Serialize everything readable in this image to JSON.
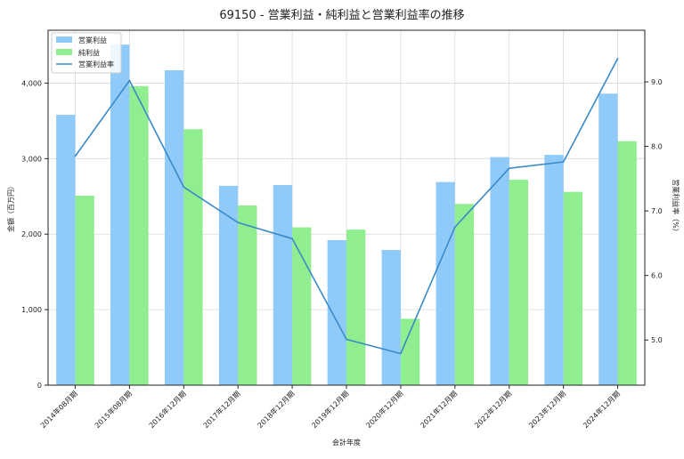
{
  "chart_data": {
    "type": "bar",
    "title": "69150 - 営業利益・純利益と営業利益率の推移",
    "xlabel": "会計年度",
    "ylabel": "金額（百万円）",
    "y2label": "営業利益率（%）",
    "categories": [
      "2014年08月期",
      "2015年08月期",
      "2016年12月期",
      "2017年12月期",
      "2018年12月期",
      "2019年12月期",
      "2020年12月期",
      "2021年12月期",
      "2022年12月期",
      "2023年12月期",
      "2024年12月期"
    ],
    "ylim": [
      0,
      4700
    ],
    "yticks": [
      0,
      1000,
      2000,
      3000,
      4000
    ],
    "ytick_labels": [
      "0",
      "1,000",
      "2,000",
      "3,000",
      "4,000"
    ],
    "y2lim": [
      4.3,
      9.8
    ],
    "y2ticks": [
      5.0,
      6.0,
      7.0,
      8.0,
      9.0
    ],
    "y2tick_labels": [
      "5.0",
      "6.0",
      "7.0",
      "8.0",
      "9.0"
    ],
    "series": [
      {
        "name": "営業利益",
        "kind": "bar",
        "axis": "left",
        "color": "#90caf9",
        "values": [
          3580,
          4510,
          4170,
          2640,
          2650,
          1920,
          1790,
          2690,
          3020,
          3050,
          3860
        ]
      },
      {
        "name": "純利益",
        "kind": "bar",
        "axis": "left",
        "color": "#90ee90",
        "values": [
          2510,
          3960,
          3390,
          2380,
          2090,
          2060,
          880,
          2400,
          2720,
          2560,
          3230
        ]
      },
      {
        "name": "営業利益率",
        "kind": "line",
        "axis": "right",
        "color": "#3a8ac8",
        "values": [
          7.85,
          9.02,
          7.37,
          6.82,
          6.57,
          5.01,
          4.79,
          6.75,
          7.66,
          7.76,
          9.36
        ]
      }
    ],
    "grid": true,
    "legend_position": "top-left"
  }
}
